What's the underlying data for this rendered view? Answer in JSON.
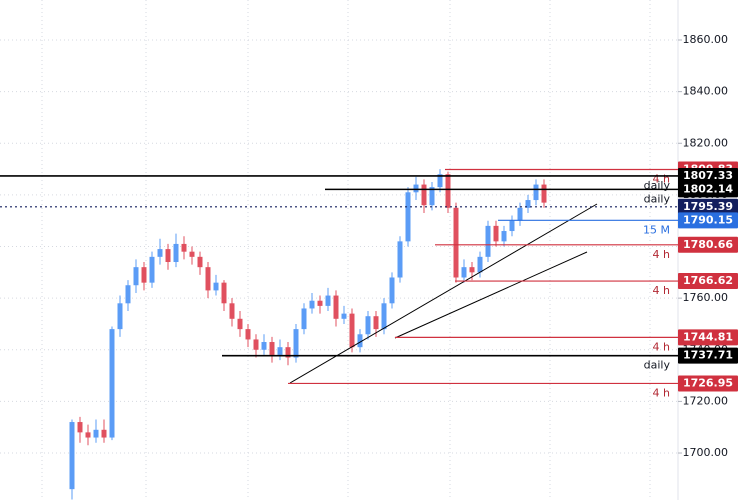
{
  "chart_data": {
    "type": "candlestick",
    "ylim": [
      1681.8,
      1875.5
    ],
    "yticks": [
      {
        "value": 1700,
        "label": "1700.00"
      },
      {
        "value": 1720,
        "label": "1720.00"
      },
      {
        "value": 1740,
        "label": "1740.00"
      },
      {
        "value": 1760,
        "label": "1760.00"
      },
      {
        "value": 1780,
        "label": "1780.00"
      },
      {
        "value": 1800,
        "label": "1800.00"
      },
      {
        "value": 1820,
        "label": "1820.00"
      },
      {
        "value": 1840,
        "label": "1840.00"
      },
      {
        "value": 1860,
        "label": "1860.00"
      }
    ],
    "grid": true,
    "up_color": "#5b9cf6",
    "down_color": "#e0505f",
    "candles": [
      [
        1686,
        1713,
        1682,
        1712
      ],
      [
        1712,
        1714,
        1704,
        1708
      ],
      [
        1708,
        1711,
        1703,
        1706
      ],
      [
        1706,
        1713,
        1704,
        1709
      ],
      [
        1709,
        1713,
        1704,
        1706
      ],
      [
        1706,
        1749,
        1705,
        1748
      ],
      [
        1748,
        1761,
        1745,
        1758
      ],
      [
        1758,
        1767,
        1755,
        1765
      ],
      [
        1765,
        1775,
        1762,
        1772
      ],
      [
        1772,
        1774,
        1763,
        1766
      ],
      [
        1766,
        1778,
        1764,
        1776
      ],
      [
        1776,
        1783,
        1773,
        1779
      ],
      [
        1779,
        1781,
        1771,
        1774
      ],
      [
        1774,
        1785,
        1772,
        1781
      ],
      [
        1781,
        1784,
        1775,
        1778
      ],
      [
        1778,
        1780,
        1773,
        1776
      ],
      [
        1776,
        1778,
        1769,
        1772
      ],
      [
        1772,
        1774,
        1760,
        1763
      ],
      [
        1763,
        1769,
        1761,
        1766
      ],
      [
        1766,
        1767,
        1755,
        1758
      ],
      [
        1758,
        1760,
        1749,
        1752
      ],
      [
        1752,
        1755,
        1745,
        1748
      ],
      [
        1748,
        1750,
        1741,
        1744
      ],
      [
        1744,
        1746,
        1737,
        1740
      ],
      [
        1740,
        1746,
        1738,
        1743
      ],
      [
        1743,
        1745,
        1735,
        1738
      ],
      [
        1738,
        1744,
        1736,
        1741
      ],
      [
        1741,
        1743,
        1734,
        1737
      ],
      [
        1737,
        1750,
        1735,
        1748
      ],
      [
        1748,
        1758,
        1746,
        1756
      ],
      [
        1756,
        1762,
        1754,
        1759
      ],
      [
        1759,
        1761,
        1754,
        1757
      ],
      [
        1757,
        1764,
        1755,
        1761
      ],
      [
        1761,
        1763,
        1749,
        1752
      ],
      [
        1752,
        1757,
        1750,
        1754
      ],
      [
        1754,
        1756,
        1739,
        1741
      ],
      [
        1741,
        1748,
        1739,
        1746
      ],
      [
        1746,
        1755,
        1744,
        1753
      ],
      [
        1753,
        1755,
        1745,
        1748
      ],
      [
        1748,
        1760,
        1746,
        1758
      ],
      [
        1758,
        1770,
        1756,
        1768
      ],
      [
        1768,
        1784,
        1766,
        1782
      ],
      [
        1782,
        1803,
        1780,
        1801
      ],
      [
        1801,
        1807,
        1798,
        1804
      ],
      [
        1804,
        1806,
        1793,
        1796
      ],
      [
        1796,
        1805,
        1794,
        1803
      ],
      [
        1803,
        1810,
        1801,
        1808
      ],
      [
        1808,
        1809,
        1793,
        1795
      ],
      [
        1795,
        1797,
        1766,
        1768
      ],
      [
        1768,
        1775,
        1766,
        1772
      ],
      [
        1772,
        1774,
        1767,
        1770
      ],
      [
        1770,
        1778,
        1768,
        1776
      ],
      [
        1776,
        1790,
        1774,
        1788
      ],
      [
        1788,
        1790,
        1780,
        1782
      ],
      [
        1782,
        1788,
        1780,
        1786
      ],
      [
        1786,
        1792,
        1784,
        1790
      ],
      [
        1790,
        1797,
        1788,
        1795
      ],
      [
        1795,
        1800,
        1793,
        1798
      ],
      [
        1798,
        1806,
        1796,
        1804
      ],
      [
        1804,
        1806,
        1795,
        1797
      ]
    ],
    "levels": [
      {
        "value": 1809.83,
        "note": "4 h",
        "color": "#d0313f"
      },
      {
        "value": 1807.33,
        "note": "daily",
        "color": "#000000"
      },
      {
        "value": 1802.14,
        "note": "daily",
        "color": "#000000"
      },
      {
        "value": 1795.39,
        "color": "#131f5e",
        "dotted": true
      },
      {
        "value": 1790.15,
        "note": "15 M",
        "color": "#2a6fe0"
      },
      {
        "value": 1780.66,
        "note": "4 h",
        "color": "#d0313f"
      },
      {
        "value": 1766.62,
        "note": "4 h",
        "color": "#d0313f"
      },
      {
        "value": 1744.81,
        "note": "4 h",
        "color": "#d0313f"
      },
      {
        "value": 1737.71,
        "note": "daily",
        "color": "#000000"
      },
      {
        "value": 1726.95,
        "note": "4 h",
        "color": "#d0313f"
      }
    ]
  }
}
